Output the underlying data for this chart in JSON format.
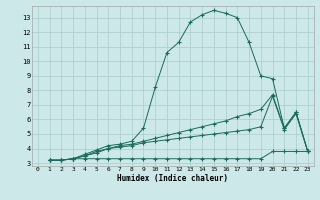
{
  "xlabel": "Humidex (Indice chaleur)",
  "bg_color": "#cce8e8",
  "grid_color": "#aacccc",
  "line_color": "#1a6b5a",
  "xlim": [
    -0.5,
    23.5
  ],
  "ylim": [
    2.8,
    13.8
  ],
  "yticks": [
    3,
    4,
    5,
    6,
    7,
    8,
    9,
    10,
    11,
    12,
    13
  ],
  "xticks": [
    0,
    1,
    2,
    3,
    4,
    5,
    6,
    7,
    8,
    9,
    10,
    11,
    12,
    13,
    14,
    15,
    16,
    17,
    18,
    19,
    20,
    21,
    22,
    23
  ],
  "series1_x": [
    1,
    2,
    3,
    4,
    5,
    6,
    7,
    8,
    9,
    10,
    11,
    12,
    13,
    14,
    15,
    16,
    17,
    18,
    19,
    20,
    21,
    22,
    23
  ],
  "series1_y": [
    3.2,
    3.2,
    3.3,
    3.6,
    3.9,
    4.2,
    4.3,
    4.5,
    5.4,
    8.2,
    10.6,
    11.3,
    12.7,
    13.2,
    13.5,
    13.3,
    13.0,
    11.3,
    9.0,
    8.8,
    5.4,
    6.5,
    3.8
  ],
  "series2_x": [
    1,
    2,
    3,
    4,
    5,
    6,
    7,
    8,
    9,
    10,
    11,
    12,
    13,
    14,
    15,
    16,
    17,
    18,
    19,
    20,
    21,
    22,
    23
  ],
  "series2_y": [
    3.2,
    3.2,
    3.3,
    3.5,
    3.8,
    4.0,
    4.2,
    4.3,
    4.5,
    4.7,
    4.9,
    5.1,
    5.3,
    5.5,
    5.7,
    5.9,
    6.2,
    6.4,
    6.7,
    7.7,
    5.4,
    6.5,
    3.8
  ],
  "series3_x": [
    1,
    2,
    3,
    4,
    5,
    6,
    7,
    8,
    9,
    10,
    11,
    12,
    13,
    14,
    15,
    16,
    17,
    18,
    19,
    20,
    21,
    22,
    23
  ],
  "series3_y": [
    3.2,
    3.2,
    3.3,
    3.5,
    3.7,
    4.0,
    4.1,
    4.2,
    4.4,
    4.5,
    4.6,
    4.7,
    4.8,
    4.9,
    5.0,
    5.1,
    5.2,
    5.3,
    5.5,
    7.6,
    5.3,
    6.4,
    3.8
  ],
  "series4_x": [
    1,
    2,
    3,
    4,
    5,
    6,
    7,
    8,
    9,
    10,
    11,
    12,
    13,
    14,
    15,
    16,
    17,
    18,
    19,
    20,
    21,
    22,
    23
  ],
  "series4_y": [
    3.2,
    3.2,
    3.3,
    3.3,
    3.3,
    3.3,
    3.3,
    3.3,
    3.3,
    3.3,
    3.3,
    3.3,
    3.3,
    3.3,
    3.3,
    3.3,
    3.3,
    3.3,
    3.3,
    3.8,
    3.8,
    3.8,
    3.8
  ]
}
